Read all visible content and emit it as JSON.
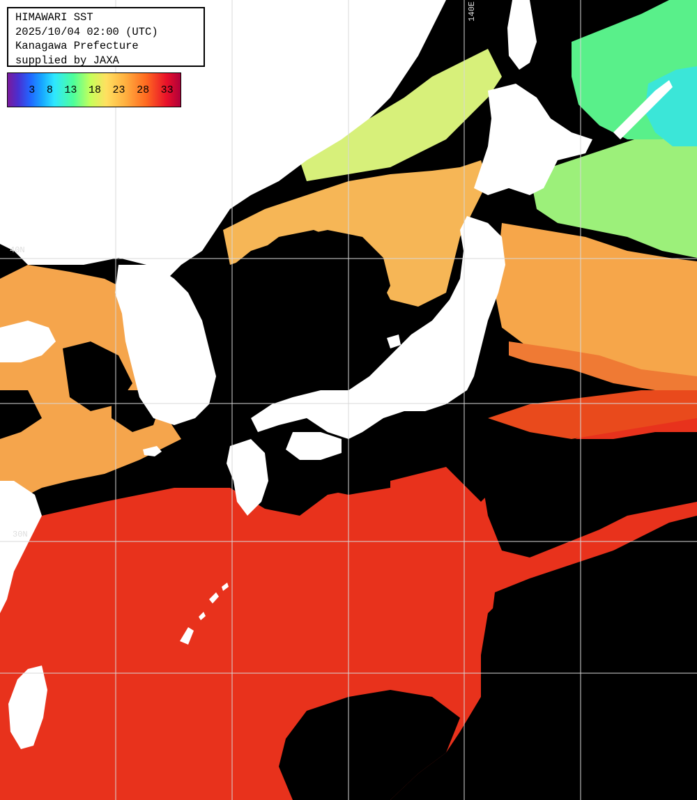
{
  "header": {
    "title": "HIMAWARI SST",
    "datetime": "2025/10/04 02:00 (UTC)",
    "region": "Kanagawa Prefecture",
    "credit": "supplied by JAXA"
  },
  "colorbar": {
    "ticks": [
      "3",
      "8",
      "13",
      "18",
      "23",
      "28",
      "33"
    ],
    "colors": [
      "#7a1a9c",
      "#2166ff",
      "#2ee7ff",
      "#4dff9a",
      "#ffe060",
      "#ff6a20",
      "#e8102a",
      "#b0003a"
    ]
  },
  "grid": {
    "lon_label": "140E",
    "lat_labels": [
      "40N",
      "30N"
    ]
  },
  "map_colors": {
    "land": "#ffffff",
    "cloud": "#000000",
    "grid": "#d8d8d8",
    "warm": "#e8321c",
    "mild": "#f5a54c",
    "cool": "#d7f07a",
    "cold": "#59f08a",
    "coldest": "#3be6d8"
  }
}
